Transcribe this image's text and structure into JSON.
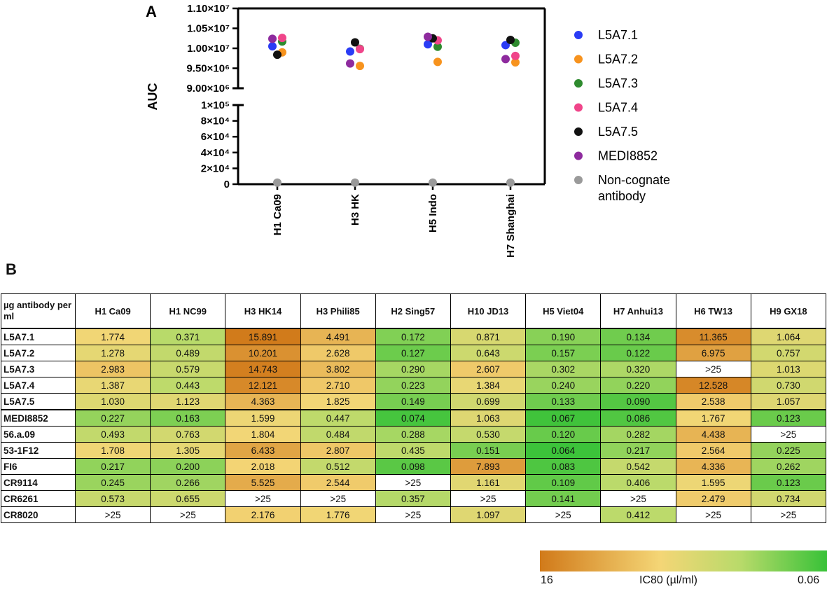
{
  "panel_a_label": "A",
  "panel_b_label": "B",
  "chart_data": [
    {
      "type": "scatter",
      "panel": "A",
      "ylabel": "AUC",
      "xlabel": "",
      "y_axis": "broken",
      "y_upper_segment": {
        "ylim": [
          9000000,
          11000000
        ],
        "ticks": [
          9000000,
          9500000,
          10000000,
          10500000,
          11000000
        ],
        "tick_labels": [
          "9.00×10⁶",
          "9.50×10⁶",
          "1.00×10⁷",
          "1.05×10⁷",
          "1.10×10⁷"
        ]
      },
      "y_lower_segment": {
        "ylim": [
          0,
          100000
        ],
        "ticks": [
          0,
          20000,
          40000,
          60000,
          80000,
          100000
        ],
        "tick_labels": [
          "0",
          "2×10⁴",
          "4×10⁴",
          "6×10⁴",
          "8×10⁴",
          "1×10⁵"
        ]
      },
      "categories": [
        "H1 Ca09",
        "H3 HK",
        "H5 Indo",
        "H7 Shanghai"
      ],
      "series": [
        {
          "name": "L5A7.1",
          "color": "#2a3cf5",
          "values": [
            10050000,
            9920000,
            10100000,
            10080000
          ],
          "offsets": [
            -1,
            -1,
            -1,
            -1
          ]
        },
        {
          "name": "L5A7.2",
          "color": "#f7931e",
          "values": [
            9900000,
            9560000,
            9660000,
            9650000
          ],
          "offsets": [
            1,
            1,
            1,
            1
          ]
        },
        {
          "name": "L5A7.3",
          "color": "#2e8b2e",
          "values": [
            10170000,
            9990000,
            10040000,
            10140000
          ],
          "offsets": [
            1,
            1,
            1,
            1
          ]
        },
        {
          "name": "L5A7.4",
          "color": "#f0458a",
          "values": [
            10260000,
            9980000,
            10200000,
            9810000
          ],
          "offsets": [
            1,
            1,
            1,
            1
          ]
        },
        {
          "name": "L5A7.5",
          "color": "#111111",
          "values": [
            9840000,
            10150000,
            10250000,
            10210000
          ],
          "offsets": [
            0,
            0,
            0,
            0
          ]
        },
        {
          "name": "MEDI8852",
          "color": "#8e2b9e",
          "values": [
            10240000,
            9620000,
            10290000,
            9730000
          ],
          "offsets": [
            -1,
            -1,
            -1,
            -1
          ]
        },
        {
          "name": "Non-cognate\nantibody",
          "color": "#9a9a9a",
          "values": [
            2000,
            2000,
            2000,
            2000
          ],
          "offsets": [
            0,
            0,
            0,
            0
          ]
        }
      ],
      "legend_position": "right"
    },
    {
      "type": "table",
      "panel": "B",
      "title": "",
      "row_header_label": "µg antibody per ml",
      "columns": [
        "H1 Ca09",
        "H1 NC99",
        "H3 HK14",
        "H3 Phili85",
        "H2 Sing57",
        "H10 JD13",
        "H5 Viet04",
        "H7 Anhui13",
        "H6 TW13",
        "H9 GX18"
      ],
      "rows": [
        {
          "name": "L5A7.1",
          "values": [
            "1.774",
            "0.371",
            "15.891",
            "4.491",
            "0.172",
            "0.871",
            "0.190",
            "0.134",
            "11.365",
            "1.064"
          ]
        },
        {
          "name": "L5A7.2",
          "values": [
            "1.278",
            "0.489",
            "10.201",
            "2.628",
            "0.127",
            "0.643",
            "0.157",
            "0.122",
            "6.975",
            "0.757"
          ]
        },
        {
          "name": "L5A7.3",
          "values": [
            "2.983",
            "0.579",
            "14.743",
            "3.802",
            "0.290",
            "2.607",
            "0.302",
            "0.320",
            ">25",
            "1.013"
          ]
        },
        {
          "name": "L5A7.4",
          "values": [
            "1.387",
            "0.443",
            "12.121",
            "2.710",
            "0.223",
            "1.384",
            "0.240",
            "0.220",
            "12.528",
            "0.730"
          ]
        },
        {
          "name": "L5A7.5",
          "values": [
            "1.030",
            "1.123",
            "4.363",
            "1.825",
            "0.149",
            "0.699",
            "0.133",
            "0.090",
            "2.538",
            "1.057"
          ]
        },
        {
          "name": "MEDI8852",
          "values": [
            "0.227",
            "0.163",
            "1.599",
            "0.447",
            "0.074",
            "1.063",
            "0.067",
            "0.086",
            "1.767",
            "0.123"
          ]
        },
        {
          "name": "56.a.09",
          "values": [
            "0.493",
            "0.763",
            "1.804",
            "0.484",
            "0.288",
            "0.530",
            "0.120",
            "0.282",
            "4.438",
            ">25"
          ]
        },
        {
          "name": "53-1F12",
          "values": [
            "1.708",
            "1.305",
            "6.433",
            "2.807",
            "0.435",
            "0.151",
            "0.064",
            "0.217",
            "2.564",
            "0.225"
          ]
        },
        {
          "name": "FI6",
          "values": [
            "0.217",
            "0.200",
            "2.018",
            "0.512",
            "0.098",
            "7.893",
            "0.083",
            "0.542",
            "4.336",
            "0.262"
          ]
        },
        {
          "name": "CR9114",
          "values": [
            "0.245",
            "0.266",
            "5.525",
            "2.544",
            ">25",
            "1.161",
            "0.109",
            "0.406",
            "1.595",
            "0.123"
          ]
        },
        {
          "name": "CR6261",
          "values": [
            "0.573",
            "0.655",
            ">25",
            ">25",
            "0.357",
            ">25",
            "0.141",
            ">25",
            "2.479",
            "0.734"
          ]
        },
        {
          "name": "CR8020",
          "values": [
            ">25",
            ">25",
            "2.176",
            "1.776",
            ">25",
            "1.097",
            ">25",
            "0.412",
            ">25",
            ">25"
          ]
        }
      ],
      "group_divider_after_row": 5,
      "colorbar": {
        "title": "IC80 (µl/ml)",
        "min_label": "16",
        "max_label": "0.06",
        "colors": [
          "#d17a1a",
          "#f4d676",
          "#b8da6a",
          "#38c238"
        ]
      }
    }
  ]
}
